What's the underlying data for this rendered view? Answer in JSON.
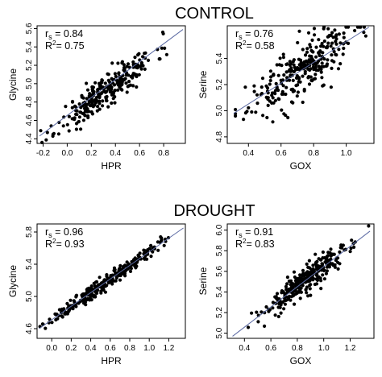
{
  "titles": {
    "control": "CONTROL",
    "drought": "DROUGHT"
  },
  "chart_data": [
    {
      "type": "scatter",
      "group": "CONTROL",
      "xlabel": "HPR",
      "ylabel": "Glycine",
      "xlim": [
        -0.25,
        0.98
      ],
      "ylim": [
        4.35,
        5.63
      ],
      "xticks": [
        "-0.2",
        "0.0",
        "0.2",
        "0.4",
        "0.6",
        "0.8"
      ],
      "yticks": [
        "4.4",
        "4.6",
        "4.8",
        "5.0",
        "5.2",
        "5.4",
        "5.6"
      ],
      "rs": "0.84",
      "r2": "0.75",
      "fit": {
        "x": [
          -0.23,
          0.96
        ],
        "y": [
          4.43,
          5.59
        ]
      },
      "cloud": {
        "n": 280,
        "xmean": 0.33,
        "xsd": 0.2,
        "xmin": -0.22,
        "xmax": 0.94,
        "slope": 0.96,
        "intercept": 4.62,
        "resid": 0.09,
        "seed": 11
      }
    },
    {
      "type": "scatter",
      "group": "CONTROL",
      "xlabel": "GOX",
      "ylabel": "Serine",
      "xlim": [
        0.27,
        1.17
      ],
      "ylim": [
        4.75,
        5.65
      ],
      "xticks": [
        "0.4",
        "0.6",
        "0.8",
        "1.0"
      ],
      "yticks": [
        "4.8",
        "5.0",
        "5.2",
        "5.4"
      ],
      "rs": "0.76",
      "r2": "0.58",
      "fit": {
        "x": [
          0.31,
          1.14
        ],
        "y": [
          4.98,
          5.64
        ]
      },
      "cloud": {
        "n": 280,
        "xmean": 0.72,
        "xsd": 0.16,
        "xmin": 0.32,
        "xmax": 1.12,
        "slope": 0.8,
        "intercept": 4.73,
        "resid": 0.1,
        "seed": 23
      }
    },
    {
      "type": "scatter",
      "group": "DROUGHT",
      "xlabel": "HPR",
      "ylabel": "Glycine",
      "xlim": [
        -0.15,
        1.37
      ],
      "ylim": [
        4.48,
        5.9
      ],
      "xticks": [
        "0.0",
        "0.2",
        "0.4",
        "0.6",
        "0.8",
        "1.0",
        "1.2"
      ],
      "yticks": [
        "4.6",
        "5.0",
        "5.4",
        "5.8"
      ],
      "rs": "0.96",
      "r2": "0.93",
      "fit": {
        "x": [
          -0.13,
          1.35
        ],
        "y": [
          4.6,
          5.85
        ]
      },
      "cloud": {
        "n": 300,
        "xmean": 0.55,
        "xsd": 0.27,
        "xmin": -0.12,
        "xmax": 1.3,
        "slope": 0.85,
        "intercept": 4.71,
        "resid": 0.045,
        "seed": 37
      }
    },
    {
      "type": "scatter",
      "group": "DROUGHT",
      "xlabel": "GOX",
      "ylabel": "Serine",
      "xlim": [
        0.27,
        1.38
      ],
      "ylim": [
        4.95,
        6.06
      ],
      "xticks": [
        "0.4",
        "0.6",
        "0.8",
        "1.0",
        "1.2"
      ],
      "yticks": [
        "5.0",
        "5.2",
        "5.4",
        "5.6",
        "5.8",
        "6.0"
      ],
      "rs": "0.91",
      "r2": "0.83",
      "fit": {
        "x": [
          0.31,
          1.35
        ],
        "y": [
          4.97,
          5.99
        ]
      },
      "cloud": {
        "n": 300,
        "xmean": 0.88,
        "xsd": 0.17,
        "xmin": 0.33,
        "xmax": 1.34,
        "slope": 0.98,
        "intercept": 4.67,
        "resid": 0.065,
        "seed": 53
      }
    }
  ]
}
